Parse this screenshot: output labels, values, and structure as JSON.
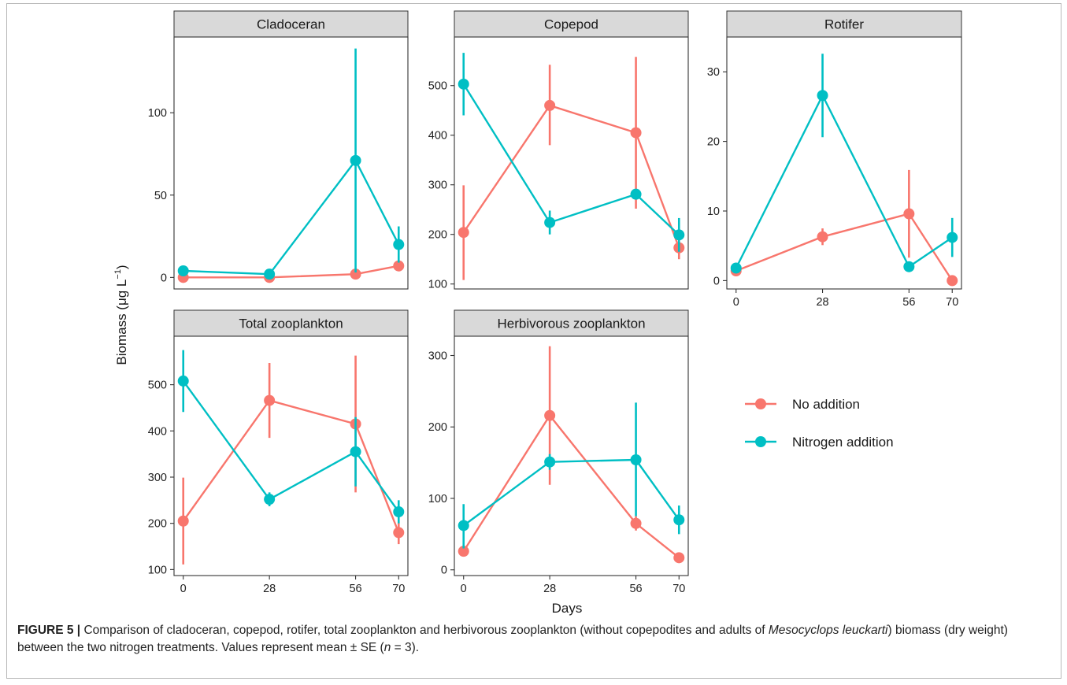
{
  "figure": {
    "ylabel": "Biomass (μg L⁻¹)",
    "ylabel_base": "Biomass (μg L",
    "ylabel_sup": "−1",
    "ylabel_close": ")",
    "xlabel": "Days"
  },
  "legend": {
    "items": [
      {
        "label": "No addition",
        "color": "#F8766D"
      },
      {
        "label": "Nitrogen addition",
        "color": "#00BFC4"
      }
    ]
  },
  "chart_data": [
    {
      "type": "line",
      "title": "Cladoceran",
      "x": [
        0,
        28,
        56,
        70
      ],
      "xticks": [
        0,
        28,
        56,
        70
      ],
      "xlim": [
        -3,
        73
      ],
      "ylim": [
        -7,
        146
      ],
      "yticks": [
        0,
        50,
        100
      ],
      "series": [
        {
          "name": "No addition",
          "values": [
            0,
            0,
            2,
            7
          ],
          "err_low": [
            0,
            0,
            1,
            5
          ],
          "err_high": [
            0,
            0,
            3,
            9
          ]
        },
        {
          "name": "Nitrogen addition",
          "values": [
            4,
            2,
            71,
            20
          ],
          "err_low": [
            3,
            1,
            3,
            9
          ],
          "err_high": [
            5,
            3,
            139,
            31
          ]
        }
      ]
    },
    {
      "type": "line",
      "title": "Copepod",
      "x": [
        0,
        28,
        56,
        70
      ],
      "xticks": [
        0,
        28,
        56,
        70
      ],
      "xlim": [
        -3,
        73
      ],
      "ylim": [
        90,
        598
      ],
      "yticks": [
        100,
        200,
        300,
        400,
        500
      ],
      "series": [
        {
          "name": "No addition",
          "values": [
            204,
            460,
            405,
            173
          ],
          "err_low": [
            108,
            380,
            252,
            150
          ],
          "err_high": [
            299,
            542,
            558,
            196
          ]
        },
        {
          "name": "Nitrogen addition",
          "values": [
            503,
            224,
            281,
            199
          ],
          "err_low": [
            440,
            200,
            276,
            165
          ],
          "err_high": [
            566,
            248,
            286,
            233
          ]
        }
      ]
    },
    {
      "type": "line",
      "title": "Rotifer",
      "x": [
        0,
        28,
        56,
        70
      ],
      "xticks": [
        0,
        28,
        56,
        70
      ],
      "xlim": [
        -3,
        73
      ],
      "ylim": [
        -1.2,
        35
      ],
      "yticks": [
        0,
        10,
        20,
        30
      ],
      "series": [
        {
          "name": "No addition",
          "values": [
            1.4,
            6.3,
            9.6,
            0
          ],
          "err_low": [
            1.1,
            5.1,
            3.3,
            0
          ],
          "err_high": [
            1.7,
            7.5,
            15.9,
            0
          ]
        },
        {
          "name": "Nitrogen addition",
          "values": [
            1.8,
            26.6,
            2.0,
            6.2
          ],
          "err_low": [
            1.5,
            20.6,
            1.7,
            3.4
          ],
          "err_high": [
            2.1,
            32.6,
            2.3,
            9.0
          ]
        }
      ]
    },
    {
      "type": "line",
      "title": "Total zooplankton",
      "x": [
        0,
        28,
        56,
        70
      ],
      "xticks": [
        0,
        28,
        56,
        70
      ],
      "xlim": [
        -3,
        73
      ],
      "ylim": [
        87,
        605
      ],
      "yticks": [
        100,
        200,
        300,
        400,
        500
      ],
      "series": [
        {
          "name": "No addition",
          "values": [
            205,
            466,
            415,
            180
          ],
          "err_low": [
            111,
            385,
            267,
            155
          ],
          "err_high": [
            299,
            547,
            563,
            205
          ]
        },
        {
          "name": "Nitrogen addition",
          "values": [
            508,
            252,
            355,
            225
          ],
          "err_low": [
            441,
            237,
            280,
            200
          ],
          "err_high": [
            575,
            267,
            430,
            250
          ]
        }
      ]
    },
    {
      "type": "line",
      "title": "Herbivorous zooplankton",
      "x": [
        0,
        28,
        56,
        70
      ],
      "xticks": [
        0,
        28,
        56,
        70
      ],
      "xlim": [
        -3,
        73
      ],
      "ylim": [
        -8,
        327
      ],
      "yticks": [
        0,
        100,
        200,
        300
      ],
      "series": [
        {
          "name": "No addition",
          "values": [
            26,
            216,
            65,
            17
          ],
          "err_low": [
            20,
            119,
            55,
            13
          ],
          "err_high": [
            32,
            313,
            75,
            21
          ]
        },
        {
          "name": "Nitrogen addition",
          "values": [
            62,
            151,
            154,
            70
          ],
          "err_low": [
            30,
            140,
            75,
            50
          ],
          "err_high": [
            92,
            162,
            234,
            90
          ]
        }
      ]
    }
  ],
  "caption": {
    "label": "FIGURE 5 |",
    "text_before": " Comparison of cladoceran, copepod, rotifer, total zooplankton and herbivorous zooplankton (without copepodites and adults of ",
    "species": "Mesocyclops leuckarti",
    "text_after": ") biomass (dry weight) between the two nitrogen treatments. Values represent mean ± SE (",
    "n_symbol": "n",
    "n_value": " = 3)."
  }
}
